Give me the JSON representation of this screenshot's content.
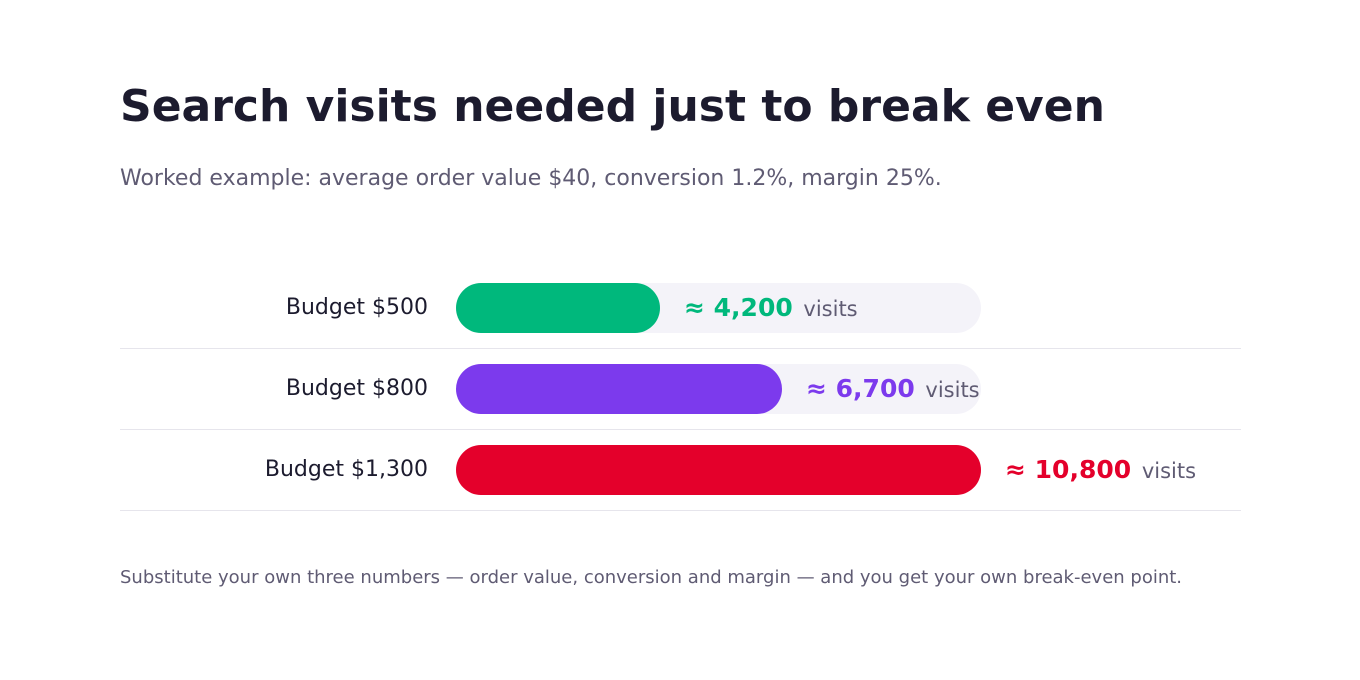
{
  "title": "Search visits needed just to break even",
  "subtitle": "Worked example: average order value $40, conversion 1.2%, margin 25%.",
  "footnote": "Substitute your own three numbers — order value, conversion and margin — and you get your own break-even point.",
  "chart_data": {
    "type": "bar",
    "orientation": "horizontal",
    "categories": [
      "Budget $500",
      "Budget $800",
      "Budget $1,300"
    ],
    "values": [
      4200,
      6700,
      10800
    ],
    "value_labels": [
      "4,200",
      "6,700",
      "10,800"
    ],
    "value_prefix": "≈",
    "value_unit": "visits",
    "colors": [
      "#00b87c",
      "#7c3aed",
      "#e4002b"
    ],
    "xlim": [
      0,
      10800
    ],
    "grid": false,
    "legend": "none"
  }
}
